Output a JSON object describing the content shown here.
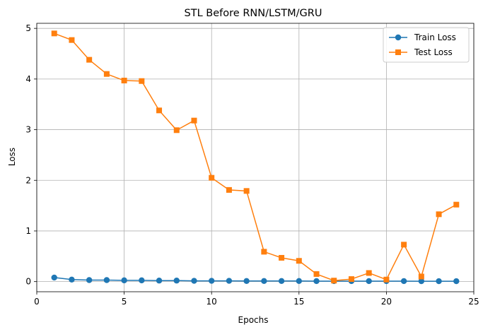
{
  "chart_data": {
    "type": "line",
    "title": "STL Before RNN/LSTM/GRU",
    "xlabel": "Epochs",
    "ylabel": "Loss",
    "xlim": [
      0,
      25
    ],
    "ylim": [
      -0.2,
      5.1
    ],
    "xticks": [
      0,
      5,
      10,
      15,
      20,
      25
    ],
    "yticks": [
      0,
      1,
      2,
      3,
      4,
      5
    ],
    "grid": true,
    "legend_position": "top-right",
    "x": [
      1,
      2,
      3,
      4,
      5,
      6,
      7,
      8,
      9,
      10,
      11,
      12,
      13,
      14,
      15,
      16,
      17,
      18,
      19,
      20,
      21,
      22,
      23,
      24
    ],
    "series": [
      {
        "name": "Train Loss",
        "color": "#1f77b4",
        "marker": "circle",
        "values": [
          0.08,
          0.04,
          0.03,
          0.03,
          0.025,
          0.025,
          0.02,
          0.02,
          0.015,
          0.015,
          0.015,
          0.012,
          0.012,
          0.012,
          0.012,
          0.01,
          0.01,
          0.01,
          0.01,
          0.01,
          0.01,
          0.008,
          0.008,
          0.008
        ]
      },
      {
        "name": "Test Loss",
        "color": "#ff7f0e",
        "marker": "square",
        "values": [
          4.9,
          4.77,
          4.38,
          4.1,
          3.97,
          3.96,
          3.38,
          2.99,
          3.18,
          2.05,
          1.81,
          1.79,
          0.59,
          0.47,
          0.41,
          0.15,
          0.02,
          0.05,
          0.17,
          0.04,
          0.73,
          0.1,
          1.33,
          1.52
        ]
      }
    ]
  }
}
